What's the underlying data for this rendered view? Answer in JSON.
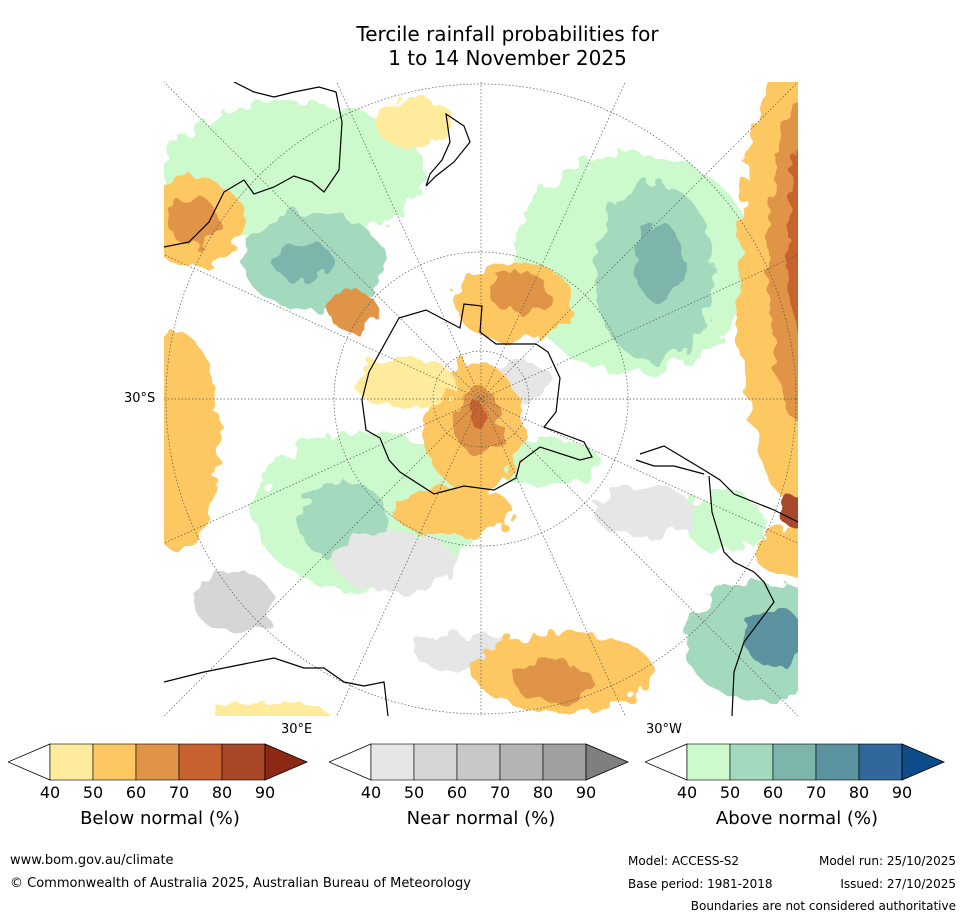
{
  "title_line1": "Tercile rainfall probabilities for",
  "title_line2": "1 to 14 November 2025",
  "map": {
    "labels": {
      "lat_30s": "30°S",
      "lon_30e": "30°E",
      "lon_30w": "30°W"
    }
  },
  "colorbars": [
    {
      "name": "below-normal",
      "title": "Below normal (%)",
      "ticks": [
        "40",
        "50",
        "60",
        "70",
        "80",
        "90"
      ],
      "colors": [
        "#ffffff",
        "#ffeb9c",
        "#fdc862",
        "#e09447",
        "#c8622f",
        "#a84829",
        "#8b2914"
      ]
    },
    {
      "name": "near-normal",
      "title": "Near normal (%)",
      "ticks": [
        "40",
        "50",
        "60",
        "70",
        "80",
        "90"
      ],
      "colors": [
        "#ffffff",
        "#e6e6e6",
        "#d6d6d6",
        "#c8c8c8",
        "#b4b4b4",
        "#a0a0a0",
        "#7f7f7f"
      ]
    },
    {
      "name": "above-normal",
      "title": "Above normal (%)",
      "ticks": [
        "40",
        "50",
        "60",
        "70",
        "80",
        "90"
      ],
      "colors": [
        "#ffffff",
        "#ccfacc",
        "#a3d9bd",
        "#7db5ad",
        "#5b92a0",
        "#31679b",
        "#0e4b8a"
      ]
    }
  ],
  "footer": {
    "website": "www.bom.gov.au/climate",
    "copyright": "© Commonwealth of Australia 2025, Australian Bureau of Meteorology",
    "model": "Model: ACCESS-S2",
    "base_period": "Base period: 1981-2018",
    "model_run": "Model run: 25/10/2025",
    "issued": "Issued: 27/10/2025",
    "disclaimer": "Boundaries are not considered authoritative"
  }
}
